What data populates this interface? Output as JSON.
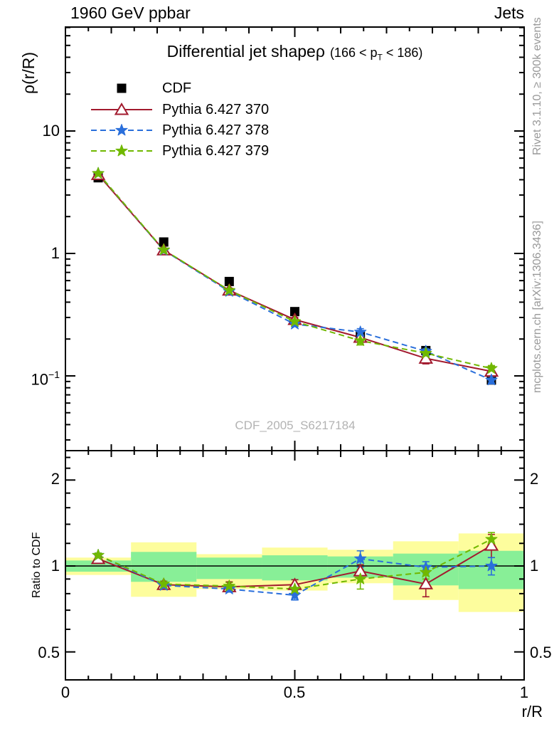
{
  "header": {
    "left": "1960 GeV ppbar",
    "right": "Jets"
  },
  "side_texts": {
    "rivet": "Rivet 3.1.10, ≥ 300k events",
    "mcplots": "mcplots.cern.ch [arXiv:1306.3436]"
  },
  "watermark": "CDF_2005_S6217184",
  "chart_data": {
    "type": "line",
    "title": "Differential jet shapeρ",
    "title_range_prefix": "(166 < p",
    "title_range_sub": "T",
    "title_range_suffix": " < 186)",
    "xlabel": "r/R",
    "ylabel_main": "ρ(r/R)",
    "ylabel_ratio": "Ratio to CDF",
    "x_axis": {
      "range": [
        0,
        1
      ],
      "major_ticks": [
        0,
        0.5,
        1
      ],
      "tick_labels": [
        "0",
        "0.5",
        "1"
      ],
      "minor_step": 0.05
    },
    "y_axis_main": {
      "scale": "log",
      "range": [
        0.025,
        70
      ],
      "tick_labels": {
        "t10": "10",
        "t1": "1",
        "t01_base": "10",
        "t01_exp": "−1"
      }
    },
    "y_axis_ratio": {
      "scale": "log",
      "range": [
        0.4,
        2.5
      ],
      "tick_labels": [
        "2",
        "1",
        "0.5"
      ],
      "reference": 1
    },
    "x": [
      0.0714,
      0.2143,
      0.3571,
      0.5,
      0.6429,
      0.7857,
      0.9286
    ],
    "bin_edges": [
      0,
      0.1429,
      0.2857,
      0.4286,
      0.5714,
      0.7143,
      0.8571,
      1
    ],
    "series": [
      {
        "name": "CDF",
        "role": "data",
        "color": "#000000",
        "marker": "square",
        "values": [
          4.15,
          1.24,
          0.59,
          0.335,
          0.215,
          0.161,
          0.0925
        ]
      },
      {
        "name": "Pythia 6.427 370",
        "role": "mc",
        "color": "#a21a2e",
        "marker": "triangle-open",
        "line": "solid",
        "values": [
          4.4,
          1.065,
          0.5,
          0.288,
          0.206,
          0.139,
          0.109
        ],
        "ratio": [
          1.06,
          0.86,
          0.845,
          0.86,
          0.96,
          0.865,
          1.18
        ],
        "ratio_err": [
          0.025,
          0.025,
          0.035,
          0.035,
          0.05,
          0.085,
          0.11
        ]
      },
      {
        "name": "Pythia 6.427 378",
        "role": "mc",
        "color": "#2a6fdb",
        "marker": "star",
        "line": "dashed",
        "values": [
          4.5,
          1.06,
          0.49,
          0.265,
          0.228,
          0.159,
          0.0925
        ],
        "ratio": [
          1.09,
          0.855,
          0.83,
          0.79,
          1.06,
          0.99,
          1.0
        ],
        "ratio_err": [
          0.02,
          0.02,
          0.02,
          0.03,
          0.07,
          0.045,
          0.07
        ]
      },
      {
        "name": "Pythia 6.427 379",
        "role": "mc",
        "color": "#70b800",
        "marker": "star",
        "line": "dashed",
        "values": [
          4.5,
          1.07,
          0.5,
          0.278,
          0.194,
          0.153,
          0.115
        ],
        "ratio": [
          1.09,
          0.865,
          0.85,
          0.83,
          0.9,
          0.95,
          1.24
        ],
        "ratio_err": [
          0.02,
          0.02,
          0.025,
          0.03,
          0.07,
          0.05,
          0.07
        ]
      }
    ],
    "ratio_bands": {
      "yellow_color": "#fdfd9d",
      "green_color": "#88ef97",
      "yellow": [
        [
          0.93,
          1.07
        ],
        [
          0.78,
          1.21
        ],
        [
          0.83,
          1.1
        ],
        [
          0.82,
          1.16
        ],
        [
          0.87,
          1.14
        ],
        [
          0.76,
          1.22
        ],
        [
          0.69,
          1.3
        ]
      ],
      "green": [
        [
          0.955,
          1.045
        ],
        [
          0.88,
          1.12
        ],
        [
          0.9,
          1.07
        ],
        [
          0.89,
          1.09
        ],
        [
          0.91,
          1.08
        ],
        [
          0.855,
          1.105
        ],
        [
          0.83,
          1.13
        ]
      ]
    }
  }
}
